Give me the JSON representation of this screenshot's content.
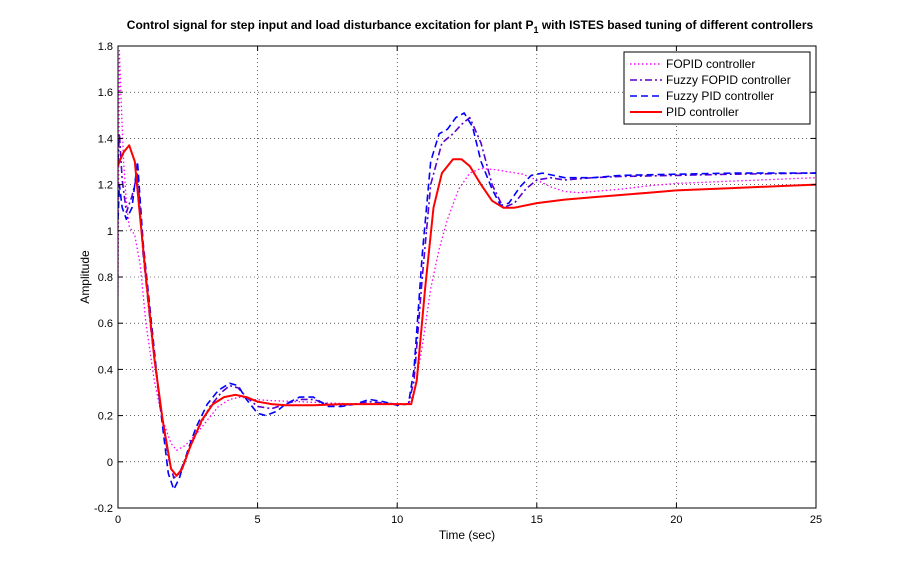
{
  "chart_data": {
    "type": "line",
    "title": {
      "prefix": "Control signal for step input and load disturbance excitation for plant P",
      "subscript": "1",
      "suffix": " with ISTES based tuning of different controllers"
    },
    "xlabel": "Time (sec)",
    "ylabel": "Amplitude",
    "xlim": [
      0,
      25
    ],
    "ylim": [
      -0.2,
      1.8
    ],
    "xticks": [
      0,
      5,
      10,
      15,
      20,
      25
    ],
    "yticks": [
      -0.2,
      0,
      0.2,
      0.4,
      0.6,
      0.8,
      1,
      1.2,
      1.4,
      1.6,
      1.8
    ],
    "grid": true,
    "legend_position": "top-right",
    "series": [
      {
        "name": "FOPID controller",
        "color": "#ff00ff",
        "style": "dotted",
        "x": [
          0,
          0.05,
          0.1,
          0.2,
          0.3,
          0.4,
          0.6,
          0.8,
          1.0,
          1.3,
          1.6,
          1.9,
          2.1,
          2.4,
          2.8,
          3.2,
          3.6,
          4.0,
          4.4,
          4.8,
          5.5,
          6.5,
          7.5,
          8.5,
          9.5,
          10.4,
          10.6,
          10.9,
          11.2,
          11.5,
          11.8,
          12.2,
          12.6,
          13.0,
          13.5,
          14.0,
          14.5,
          15.0,
          15.5,
          16.0,
          16.5,
          17.0,
          18.0,
          19.0,
          20.0,
          21.0,
          22.0,
          23.0,
          24.0,
          25.0
        ],
        "values": [
          0.72,
          1.78,
          1.6,
          1.3,
          1.12,
          1.02,
          0.98,
          0.85,
          0.6,
          0.35,
          0.18,
          0.08,
          0.05,
          0.07,
          0.12,
          0.18,
          0.24,
          0.27,
          0.28,
          0.27,
          0.265,
          0.26,
          0.255,
          0.25,
          0.25,
          0.25,
          0.3,
          0.5,
          0.75,
          0.92,
          1.05,
          1.18,
          1.25,
          1.27,
          1.265,
          1.255,
          1.245,
          1.22,
          1.19,
          1.17,
          1.165,
          1.17,
          1.18,
          1.195,
          1.205,
          1.21,
          1.215,
          1.22,
          1.225,
          1.23
        ]
      },
      {
        "name": "Fuzzy FOPID controller",
        "color": "#5a00d0",
        "style": "dashdot",
        "x": [
          0,
          0.05,
          0.15,
          0.3,
          0.5,
          0.7,
          0.9,
          1.2,
          1.5,
          1.8,
          2.0,
          2.2,
          2.5,
          2.9,
          3.3,
          3.7,
          4.0,
          4.3,
          4.6,
          5.0,
          5.5,
          6.0,
          6.5,
          7.0,
          7.5,
          8.0,
          8.5,
          9.0,
          9.5,
          10.0,
          10.4,
          10.6,
          10.9,
          11.2,
          11.6,
          12.0,
          12.3,
          12.6,
          13.0,
          13.4,
          13.8,
          14.2,
          14.6,
          15.0,
          15.5,
          16.0,
          17.0,
          18.0,
          20.0,
          22.0,
          25.0
        ],
        "values": [
          1.3,
          1.42,
          1.22,
          1.08,
          1.15,
          1.25,
          0.9,
          0.55,
          0.25,
          0.02,
          -0.07,
          -0.05,
          0.04,
          0.15,
          0.24,
          0.3,
          0.33,
          0.32,
          0.28,
          0.24,
          0.23,
          0.25,
          0.27,
          0.27,
          0.25,
          0.245,
          0.25,
          0.26,
          0.255,
          0.25,
          0.25,
          0.35,
          0.8,
          1.2,
          1.38,
          1.42,
          1.46,
          1.49,
          1.38,
          1.2,
          1.1,
          1.12,
          1.18,
          1.22,
          1.23,
          1.22,
          1.23,
          1.235,
          1.24,
          1.245,
          1.25
        ]
      },
      {
        "name": "Fuzzy PID controller",
        "color": "#0000ff",
        "style": "dashed",
        "x": [
          0,
          0.05,
          0.15,
          0.3,
          0.5,
          0.7,
          0.9,
          1.2,
          1.5,
          1.8,
          2.0,
          2.2,
          2.5,
          2.8,
          3.2,
          3.6,
          4.0,
          4.3,
          4.6,
          5.0,
          5.3,
          5.7,
          6.0,
          6.5,
          7.0,
          7.5,
          8.0,
          8.5,
          9.0,
          9.5,
          10.0,
          10.4,
          10.6,
          10.9,
          11.2,
          11.5,
          11.8,
          12.1,
          12.4,
          12.7,
          13.0,
          13.4,
          13.7,
          14.0,
          14.4,
          14.8,
          15.2,
          15.6,
          16.0,
          17.0,
          18.0,
          20.0,
          22.0,
          25.0
        ],
        "values": [
          1.05,
          1.2,
          1.1,
          1.05,
          1.1,
          1.3,
          0.95,
          0.6,
          0.25,
          -0.05,
          -0.12,
          -0.07,
          0.05,
          0.15,
          0.25,
          0.31,
          0.34,
          0.33,
          0.27,
          0.21,
          0.2,
          0.22,
          0.25,
          0.28,
          0.28,
          0.24,
          0.24,
          0.25,
          0.27,
          0.26,
          0.245,
          0.25,
          0.4,
          0.9,
          1.3,
          1.42,
          1.44,
          1.49,
          1.51,
          1.45,
          1.3,
          1.18,
          1.11,
          1.12,
          1.19,
          1.24,
          1.25,
          1.24,
          1.23,
          1.23,
          1.24,
          1.245,
          1.25,
          1.25
        ]
      },
      {
        "name": "PID controller",
        "color": "#ff0000",
        "style": "solid",
        "x": [
          0,
          0.05,
          0.2,
          0.4,
          0.6,
          0.8,
          1.0,
          1.3,
          1.6,
          1.9,
          2.1,
          2.3,
          2.6,
          3.0,
          3.4,
          3.8,
          4.2,
          4.6,
          5.0,
          5.5,
          6.0,
          7.0,
          8.0,
          9.0,
          10.0,
          10.5,
          10.7,
          11.0,
          11.3,
          11.6,
          12.0,
          12.3,
          12.6,
          13.0,
          13.4,
          13.8,
          14.2,
          15.0,
          16.0,
          17.0,
          18.0,
          19.0,
          20.0,
          21.0,
          22.0,
          23.0,
          24.0,
          25.0
        ],
        "values": [
          1.28,
          1.3,
          1.34,
          1.37,
          1.3,
          1.05,
          0.8,
          0.45,
          0.18,
          -0.03,
          -0.06,
          -0.03,
          0.07,
          0.18,
          0.25,
          0.28,
          0.29,
          0.28,
          0.26,
          0.25,
          0.245,
          0.245,
          0.25,
          0.25,
          0.25,
          0.25,
          0.35,
          0.75,
          1.1,
          1.25,
          1.31,
          1.31,
          1.28,
          1.2,
          1.13,
          1.1,
          1.1,
          1.12,
          1.135,
          1.145,
          1.155,
          1.165,
          1.175,
          1.18,
          1.185,
          1.19,
          1.195,
          1.2
        ]
      }
    ]
  }
}
